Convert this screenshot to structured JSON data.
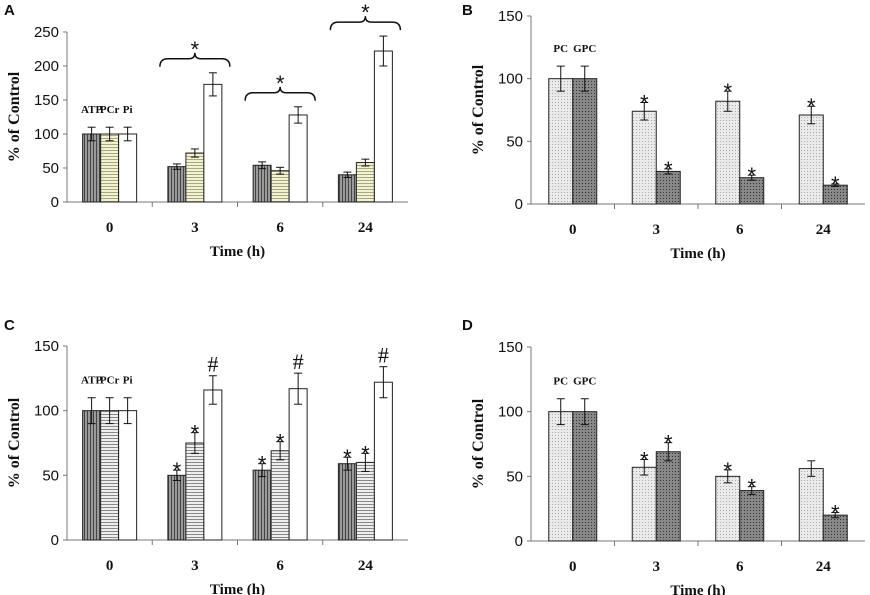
{
  "chart_data": [
    {
      "panel": "A",
      "type": "bar",
      "title": "",
      "xlabel": "Time (h)",
      "ylabel": "% of Control",
      "ylim": [
        0,
        250
      ],
      "yticks": [
        0,
        50,
        100,
        150,
        200,
        250
      ],
      "categories": [
        "0",
        "3",
        "6",
        "24"
      ],
      "series": [
        {
          "name": "ATP",
          "pattern": "vstripe-dark",
          "values": [
            100,
            52,
            54,
            40
          ],
          "errors": [
            10,
            4,
            5,
            4
          ],
          "marks": [
            "",
            "",
            "",
            ""
          ]
        },
        {
          "name": "PCr",
          "pattern": "hstripe-yellow",
          "values": [
            100,
            72,
            46,
            58
          ],
          "errors": [
            10,
            6,
            5,
            5
          ],
          "marks": [
            "",
            "",
            "",
            ""
          ]
        },
        {
          "name": "Pi",
          "pattern": "white",
          "values": [
            100,
            173,
            128,
            222
          ],
          "errors": [
            10,
            17,
            12,
            22
          ],
          "marks": [
            "",
            "",
            "",
            ""
          ]
        }
      ],
      "group_marks": [
        "",
        "*",
        "*",
        "*"
      ]
    },
    {
      "panel": "B",
      "type": "bar",
      "title": "",
      "xlabel": "Time (h)",
      "ylabel": "% of Control",
      "ylim": [
        0,
        150
      ],
      "yticks": [
        0,
        50,
        100,
        150
      ],
      "categories": [
        "0",
        "3",
        "6",
        "24"
      ],
      "series": [
        {
          "name": "PC",
          "pattern": "dot-light",
          "values": [
            100,
            74,
            82,
            71
          ],
          "errors": [
            10,
            7,
            8,
            7
          ],
          "marks": [
            "",
            "*",
            "*",
            "*"
          ]
        },
        {
          "name": "GPC",
          "pattern": "dot-dark",
          "values": [
            100,
            26,
            21,
            15
          ],
          "errors": [
            10,
            2,
            2,
            1
          ],
          "marks": [
            "",
            "*",
            "*",
            "*"
          ]
        }
      ],
      "group_marks": [
        "",
        "",
        "",
        ""
      ]
    },
    {
      "panel": "C",
      "type": "bar",
      "title": "",
      "xlabel": "Time (h)",
      "ylabel": "% of Control",
      "ylim": [
        0,
        150
      ],
      "yticks": [
        0,
        50,
        100,
        150
      ],
      "categories": [
        "0",
        "3",
        "6",
        "24"
      ],
      "series": [
        {
          "name": "ATP",
          "pattern": "vstripe-dark",
          "values": [
            100,
            50,
            54,
            59
          ],
          "errors": [
            10,
            4,
            5,
            5
          ],
          "marks": [
            "",
            "*",
            "*",
            "*"
          ]
        },
        {
          "name": "PCr",
          "pattern": "hstripe-gray",
          "values": [
            100,
            75,
            69,
            60
          ],
          "errors": [
            10,
            8,
            7,
            7
          ],
          "marks": [
            "",
            "*",
            "*",
            "*"
          ]
        },
        {
          "name": "Pi",
          "pattern": "white",
          "values": [
            100,
            116,
            117,
            122
          ],
          "errors": [
            10,
            11,
            12,
            12
          ],
          "marks": [
            "",
            "#",
            "#",
            "#"
          ]
        }
      ],
      "group_marks": [
        "",
        "",
        "",
        ""
      ]
    },
    {
      "panel": "D",
      "type": "bar",
      "title": "",
      "xlabel": "Time (h)",
      "ylabel": "% of Control",
      "ylim": [
        0,
        150
      ],
      "yticks": [
        0,
        50,
        100,
        150
      ],
      "categories": [
        "0",
        "3",
        "6",
        "24"
      ],
      "series": [
        {
          "name": "PC",
          "pattern": "dot-light",
          "values": [
            100,
            57,
            50,
            56
          ],
          "errors": [
            10,
            6,
            5,
            6
          ],
          "marks": [
            "",
            "*",
            "*",
            ""
          ]
        },
        {
          "name": "GPC",
          "pattern": "dot-dark",
          "values": [
            100,
            69,
            39,
            20
          ],
          "errors": [
            10,
            7,
            3,
            2
          ],
          "marks": [
            "",
            "*",
            "*",
            "*"
          ]
        }
      ],
      "group_marks": [
        "",
        "",
        "",
        ""
      ]
    }
  ]
}
